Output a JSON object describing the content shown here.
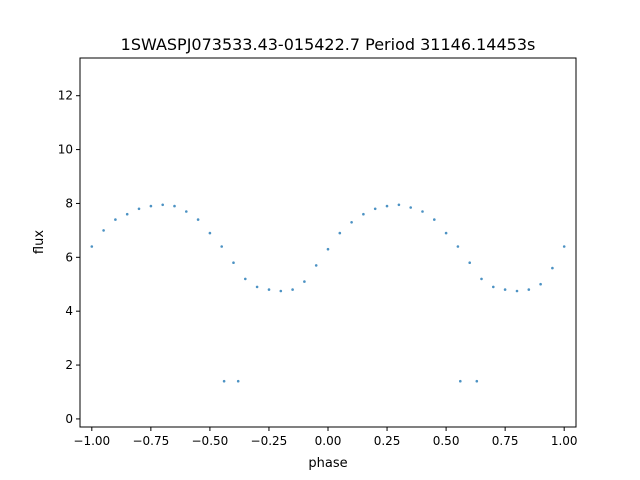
{
  "chart_data": {
    "type": "scatter",
    "title": "1SWASPJ073533.43-015422.7 Period 31146.14453s",
    "xlabel": "phase",
    "ylabel": "flux",
    "xlim": [
      -1.05,
      1.05
    ],
    "ylim": [
      -0.3,
      13.4
    ],
    "xticks": [
      -1.0,
      -0.75,
      -0.5,
      -0.25,
      0.0,
      0.25,
      0.5,
      0.75,
      1.0
    ],
    "xtick_labels": [
      "−1.00",
      "−0.75",
      "−0.50",
      "−0.25",
      "0.00",
      "0.25",
      "0.50",
      "0.75",
      "1.00"
    ],
    "yticks": [
      0,
      2,
      4,
      6,
      8,
      10,
      12
    ],
    "ytick_labels": [
      "0",
      "2",
      "4",
      "6",
      "8",
      "10",
      "12"
    ],
    "grid": false,
    "legend": "none",
    "series": [
      {
        "color": "#1f77b4",
        "x": [
          -1.0,
          -0.95,
          -0.9,
          -0.85,
          -0.8,
          -0.75,
          -0.7,
          -0.65,
          -0.6,
          -0.55,
          -0.5,
          -0.45,
          -0.4,
          -0.35,
          -0.3,
          -0.25,
          -0.2,
          -0.15,
          -0.1,
          -0.05,
          0.0,
          0.05,
          0.1,
          0.15,
          0.2,
          0.25,
          0.3,
          0.35,
          0.4,
          0.45,
          0.5,
          0.55,
          0.6,
          0.65,
          0.7,
          0.75,
          0.8,
          0.85,
          0.9,
          0.95,
          1.0,
          -0.44,
          -0.38,
          0.56,
          0.63
        ],
        "y": [
          6.4,
          7.0,
          7.4,
          7.6,
          7.8,
          7.9,
          7.95,
          7.9,
          7.7,
          7.4,
          6.9,
          6.4,
          5.8,
          5.2,
          4.9,
          4.8,
          4.75,
          4.8,
          5.1,
          5.7,
          6.3,
          6.9,
          7.3,
          7.6,
          7.8,
          7.9,
          7.95,
          7.85,
          7.7,
          7.4,
          6.9,
          6.4,
          5.8,
          5.2,
          4.9,
          4.8,
          4.75,
          4.8,
          5.0,
          5.6,
          6.4,
          1.4,
          1.4,
          1.4,
          1.4
        ]
      }
    ]
  }
}
